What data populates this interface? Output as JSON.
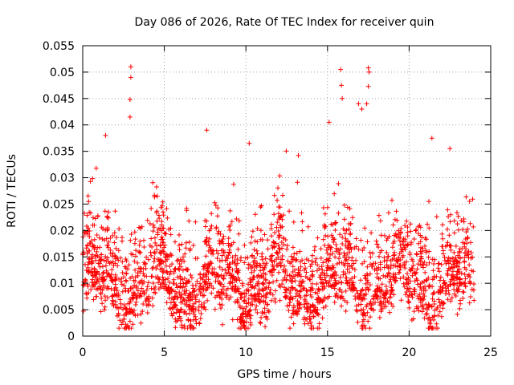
{
  "chart_data": {
    "type": "scatter",
    "title": "Day 086 of 2026, Rate Of TEC Index for receiver quin",
    "xlabel": "GPS time / hours",
    "ylabel": "ROTI / TECUs",
    "xlim": [
      0,
      25
    ],
    "ylim": [
      0,
      0.055
    ],
    "xticks": [
      0,
      5,
      10,
      15,
      20,
      25
    ],
    "xtick_labels": [
      "0",
      "5",
      "10",
      "15",
      "20",
      "25"
    ],
    "yticks": [
      0,
      0.005,
      0.01,
      0.015,
      0.02,
      0.025,
      0.03,
      0.035,
      0.04,
      0.045,
      0.05,
      0.055
    ],
    "ytick_labels": [
      "0",
      "0.005",
      "0.01",
      "0.015",
      "0.02",
      "0.025",
      "0.03",
      "0.035",
      "0.04",
      "0.045",
      "0.05",
      "0.055"
    ],
    "grid": true,
    "marker": "+",
    "color": "#ff0000",
    "x_data_range": [
      0,
      24
    ],
    "series_summary": "dense cloud of ROTI values mostly between 0.003 and 0.030 TECU/s over 0-24 h",
    "peaks": [
      {
        "x": 2.95,
        "y": 0.051
      },
      {
        "x": 2.95,
        "y": 0.049
      },
      {
        "x": 2.9,
        "y": 0.0448
      },
      {
        "x": 2.9,
        "y": 0.0415
      },
      {
        "x": 1.4,
        "y": 0.038
      },
      {
        "x": 7.6,
        "y": 0.039
      },
      {
        "x": 10.2,
        "y": 0.0365
      },
      {
        "x": 15.1,
        "y": 0.0405
      },
      {
        "x": 15.8,
        "y": 0.0505
      },
      {
        "x": 15.85,
        "y": 0.0475
      },
      {
        "x": 15.9,
        "y": 0.045
      },
      {
        "x": 17.5,
        "y": 0.0508
      },
      {
        "x": 17.55,
        "y": 0.05
      },
      {
        "x": 17.5,
        "y": 0.0473
      },
      {
        "x": 17.4,
        "y": 0.044
      },
      {
        "x": 16.9,
        "y": 0.044
      },
      {
        "x": 17.1,
        "y": 0.043
      },
      {
        "x": 21.4,
        "y": 0.0375
      },
      {
        "x": 22.5,
        "y": 0.0355
      }
    ]
  }
}
